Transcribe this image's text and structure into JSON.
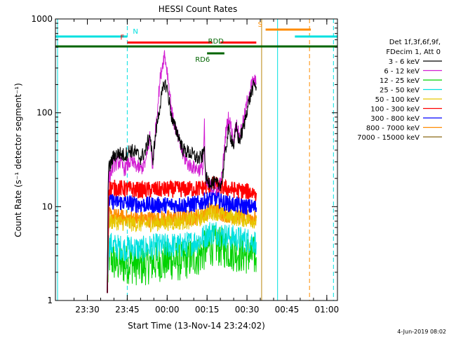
{
  "chart_data": {
    "type": "line",
    "title": "HESSI Count Rates",
    "xlabel": "Start Time (13-Nov-14 23:24:02)",
    "ylabel": "Count Rate (s⁻¹ detector segment⁻¹)",
    "yscale": "log",
    "ylim": [
      1,
      1000
    ],
    "xlim_minutes": [
      -6,
      100
    ],
    "x_unit": "minutes after 23:24:02",
    "x_ticks": [
      {
        "label": "23:30",
        "min": 6
      },
      {
        "label": "23:45",
        "min": 21
      },
      {
        "label": "00:00",
        "min": 36
      },
      {
        "label": "00:15",
        "min": 51
      },
      {
        "label": "00:30",
        "min": 66
      },
      {
        "label": "00:45",
        "min": 81
      },
      {
        "label": "01:00",
        "min": 96
      }
    ],
    "y_ticks": [
      {
        "label": "1",
        "value": 1
      },
      {
        "label": "10",
        "value": 10
      },
      {
        "label": "100",
        "value": 100
      },
      {
        "label": "1000",
        "value": 1000
      }
    ],
    "legend_header": [
      "Det 1f,3f,6f,9f,",
      "FDecim 1, Att 0"
    ],
    "series": [
      {
        "name": "3 - 6 keV",
        "color": "#000000",
        "points": [
          [
            13.5,
            1.2
          ],
          [
            13.8,
            18
          ],
          [
            14,
            25
          ],
          [
            16,
            35
          ],
          [
            18,
            37
          ],
          [
            20,
            35
          ],
          [
            22,
            40
          ],
          [
            24,
            38
          ],
          [
            26,
            33
          ],
          [
            28,
            40
          ],
          [
            29.5,
            60
          ],
          [
            30.5,
            30
          ],
          [
            32,
            70
          ],
          [
            33.5,
            130
          ],
          [
            35,
            210
          ],
          [
            36,
            180
          ],
          [
            37,
            120
          ],
          [
            38,
            80
          ],
          [
            40,
            60
          ],
          [
            42,
            40
          ],
          [
            44,
            38
          ],
          [
            46,
            35
          ],
          [
            48,
            32
          ],
          [
            49.5,
            35
          ],
          [
            50,
            50
          ],
          [
            50.3,
            22
          ],
          [
            51,
            19
          ],
          [
            53,
            18
          ],
          [
            55,
            17
          ],
          [
            56.5,
            18
          ],
          [
            58,
            40
          ],
          [
            59,
            65
          ],
          [
            60,
            55
          ],
          [
            61,
            45
          ],
          [
            62,
            70
          ],
          [
            63,
            50
          ],
          [
            64,
            60
          ],
          [
            65,
            75
          ],
          [
            66,
            110
          ],
          [
            67,
            140
          ],
          [
            68,
            180
          ],
          [
            69,
            200
          ],
          [
            69.5,
            190
          ]
        ]
      },
      {
        "name": "6 - 12 keV",
        "color": "#d21fd2",
        "points": [
          [
            13.5,
            1.2
          ],
          [
            13.8,
            12
          ],
          [
            14,
            20
          ],
          [
            16,
            28
          ],
          [
            18,
            30
          ],
          [
            20,
            25
          ],
          [
            22,
            30
          ],
          [
            24,
            28
          ],
          [
            26,
            25
          ],
          [
            28,
            30
          ],
          [
            29.5,
            55
          ],
          [
            30.5,
            26
          ],
          [
            32,
            90
          ],
          [
            33.5,
            250
          ],
          [
            35,
            430
          ],
          [
            36,
            280
          ],
          [
            37,
            160
          ],
          [
            38,
            90
          ],
          [
            40,
            55
          ],
          [
            42,
            35
          ],
          [
            44,
            28
          ],
          [
            46,
            26
          ],
          [
            48,
            25
          ],
          [
            49.5,
            26
          ],
          [
            50,
            80
          ],
          [
            50.3,
            20
          ],
          [
            51,
            17
          ],
          [
            53,
            16
          ],
          [
            55,
            15
          ],
          [
            56.5,
            20
          ],
          [
            58,
            60
          ],
          [
            59,
            90
          ],
          [
            60,
            70
          ],
          [
            61,
            50
          ],
          [
            62,
            80
          ],
          [
            63,
            55
          ],
          [
            64,
            70
          ],
          [
            65,
            90
          ],
          [
            66,
            130
          ],
          [
            67,
            170
          ],
          [
            68,
            210
          ],
          [
            69,
            220
          ],
          [
            69.5,
            200
          ]
        ]
      },
      {
        "name": "12 - 25 keV",
        "color": "#00d200",
        "points": [
          [
            13.5,
            1.2
          ],
          [
            14,
            3
          ],
          [
            16,
            2.6
          ],
          [
            18,
            2.5
          ],
          [
            20,
            2.4
          ],
          [
            22,
            2.5
          ],
          [
            24,
            2.4
          ],
          [
            26,
            2.3
          ],
          [
            28,
            2.4
          ],
          [
            30,
            2.5
          ],
          [
            32,
            2.6
          ],
          [
            34,
            2.6
          ],
          [
            36,
            2.6
          ],
          [
            38,
            2.7
          ],
          [
            40,
            2.6
          ],
          [
            42,
            2.7
          ],
          [
            44,
            2.8
          ],
          [
            46,
            2.9
          ],
          [
            48,
            3.0
          ],
          [
            50,
            3.4
          ],
          [
            52,
            3.8
          ],
          [
            54,
            3.9
          ],
          [
            56,
            3.7
          ],
          [
            58,
            3.6
          ],
          [
            60,
            3.4
          ],
          [
            62,
            3.3
          ],
          [
            64,
            3.2
          ],
          [
            66,
            3.1
          ],
          [
            68,
            3.0
          ],
          [
            69.5,
            2.9
          ]
        ]
      },
      {
        "name": "25 - 50 keV",
        "color": "#00e0e0",
        "points": [
          [
            13.5,
            1.2
          ],
          [
            14,
            4.0
          ],
          [
            16,
            3.8
          ],
          [
            18,
            3.7
          ],
          [
            20,
            3.6
          ],
          [
            22,
            3.7
          ],
          [
            24,
            3.6
          ],
          [
            26,
            3.5
          ],
          [
            28,
            3.6
          ],
          [
            30,
            3.7
          ],
          [
            32,
            3.8
          ],
          [
            34,
            3.8
          ],
          [
            36,
            3.8
          ],
          [
            38,
            3.9
          ],
          [
            40,
            3.8
          ],
          [
            42,
            3.9
          ],
          [
            44,
            4.0
          ],
          [
            46,
            4.2
          ],
          [
            48,
            4.4
          ],
          [
            50,
            4.8
          ],
          [
            52,
            5.3
          ],
          [
            54,
            5.4
          ],
          [
            56,
            5.1
          ],
          [
            58,
            4.9
          ],
          [
            60,
            4.7
          ],
          [
            62,
            4.6
          ],
          [
            64,
            4.5
          ],
          [
            66,
            4.4
          ],
          [
            68,
            4.3
          ],
          [
            69.5,
            4.2
          ]
        ]
      },
      {
        "name": "50 - 100 keV",
        "color": "#e6c800",
        "points": [
          [
            13.5,
            1.2
          ],
          [
            14,
            7.0
          ],
          [
            20,
            6.7
          ],
          [
            26,
            6.5
          ],
          [
            32,
            6.7
          ],
          [
            38,
            6.8
          ],
          [
            44,
            7.0
          ],
          [
            48,
            7.4
          ],
          [
            50,
            8.0
          ],
          [
            52,
            8.6
          ],
          [
            54,
            8.8
          ],
          [
            56,
            8.3
          ],
          [
            58,
            7.9
          ],
          [
            62,
            7.6
          ],
          [
            66,
            7.3
          ],
          [
            69.5,
            7.1
          ]
        ]
      },
      {
        "name": "100 - 300 keV",
        "color": "#ff0000",
        "points": [
          [
            13.5,
            1.2
          ],
          [
            14,
            16
          ],
          [
            20,
            15.5
          ],
          [
            26,
            15
          ],
          [
            32,
            15.2
          ],
          [
            38,
            15.3
          ],
          [
            44,
            15.4
          ],
          [
            48,
            15.6
          ],
          [
            50,
            16
          ],
          [
            52,
            17
          ],
          [
            54,
            17.2
          ],
          [
            56,
            16.5
          ],
          [
            58,
            15.6
          ],
          [
            62,
            15
          ],
          [
            66,
            14.5
          ],
          [
            69.5,
            14
          ]
        ]
      },
      {
        "name": "300 - 800 keV",
        "color": "#0000ff",
        "points": [
          [
            13.5,
            1.2
          ],
          [
            14,
            11.5
          ],
          [
            20,
            11
          ],
          [
            26,
            10.5
          ],
          [
            32,
            10.4
          ],
          [
            38,
            10.4
          ],
          [
            44,
            10.5
          ],
          [
            48,
            10.8
          ],
          [
            50,
            11.5
          ],
          [
            52,
            12.2
          ],
          [
            54,
            12.3
          ],
          [
            56,
            11.6
          ],
          [
            58,
            10.9
          ],
          [
            62,
            10.4
          ],
          [
            66,
            10
          ],
          [
            69.5,
            9.8
          ]
        ]
      },
      {
        "name": "800 - 7000 keV",
        "color": "#ff8c00",
        "points": [
          [
            13.5,
            1.2
          ],
          [
            14,
            8.0
          ],
          [
            20,
            7.6
          ],
          [
            26,
            7.3
          ],
          [
            32,
            7.4
          ],
          [
            38,
            7.5
          ],
          [
            44,
            7.6
          ],
          [
            48,
            7.9
          ],
          [
            50,
            8.6
          ],
          [
            52,
            9.2
          ],
          [
            54,
            9.3
          ],
          [
            56,
            8.8
          ],
          [
            58,
            8.3
          ],
          [
            62,
            8.0
          ],
          [
            66,
            7.7
          ],
          [
            69.5,
            7.5
          ]
        ]
      },
      {
        "name": "7000 - 15000 keV",
        "color": "#8b6914",
        "points": []
      }
    ],
    "annotations": {
      "bars": [
        {
          "label": "N",
          "color": "#00e0e0",
          "value": 650,
          "segments": [
            [
              -6,
              21
            ],
            [
              84,
              100
            ]
          ]
        },
        {
          "label": "F",
          "color": "#ff0000",
          "value": 560,
          "segments": [
            [
              21,
              53
            ],
            [
              56,
              69.5
            ]
          ]
        },
        {
          "label": "S",
          "color": "#ff8c00",
          "value": 770,
          "segments": [
            [
              73,
              90
            ]
          ]
        },
        {
          "label": "RDD",
          "color": "#006400",
          "value": 510,
          "segments": [
            [
              -6,
              100
            ]
          ]
        },
        {
          "label": "RD6",
          "color": "#006400",
          "value": 430,
          "segments": [
            [
              51,
              57.5
            ]
          ]
        }
      ],
      "vlines": [
        {
          "color": "#00e0e0",
          "min": -5.2,
          "dashed": false
        },
        {
          "color": "#00e0e0",
          "min": 21,
          "dashed": true
        },
        {
          "color": "#b8860b",
          "min": 71.5,
          "dashed": false
        },
        {
          "color": "#00e0e0",
          "min": 77.5,
          "dashed": false
        },
        {
          "color": "#ff8c00",
          "min": 89.5,
          "dashed": true
        },
        {
          "color": "#00e0e0",
          "min": 98.5,
          "dashed": true
        }
      ]
    }
  },
  "footer_date": "4-Jun-2019 08:02"
}
